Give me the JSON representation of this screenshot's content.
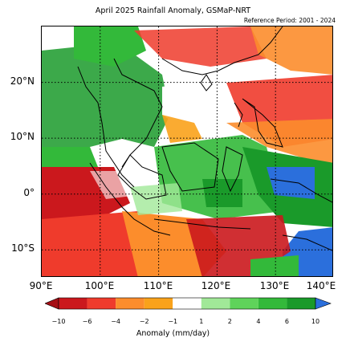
{
  "title": "April 2025 Rainfall Anomaly, GSMaP-NRT",
  "reference": "Reference Period: 2001 - 2024",
  "map": {
    "lat_labels": [
      "20°N",
      "10°N",
      "0°",
      "10°S"
    ],
    "lon_labels": [
      "90°E",
      "100°E",
      "110°E",
      "120°E",
      "130°E",
      "140°E"
    ],
    "lon_range": [
      90,
      140
    ],
    "lat_range": [
      -15,
      30
    ],
    "gridlines": "dotted",
    "projection": "equirectangular"
  },
  "colorbar": {
    "title": "Anomaly (mm/day)",
    "ticks": [
      "−10",
      "−6",
      "−4",
      "−2",
      "−1",
      "1",
      "2",
      "4",
      "6",
      "10"
    ],
    "colors": [
      "#a50f15",
      "#cb181d",
      "#ef3b2c",
      "#fc8d2c",
      "#f9a21b",
      "#ffffff",
      "#a1e898",
      "#5fd35a",
      "#33b93a",
      "#1a9a2a",
      "#2b6fdc"
    ],
    "extend": "both"
  }
}
